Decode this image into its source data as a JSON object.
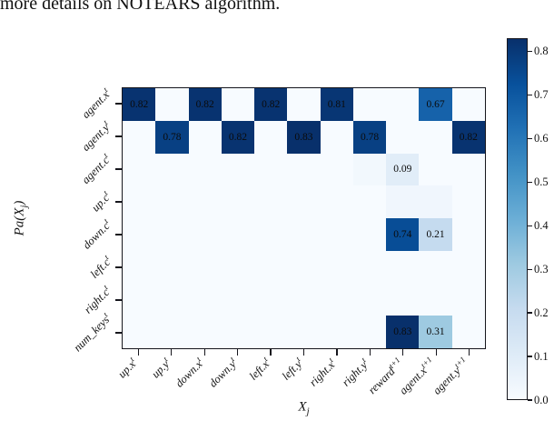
{
  "caption": {
    "text": "more details on NOTEARS algorithm."
  },
  "chart_data": {
    "type": "heatmap",
    "title": "",
    "xlabel": {
      "pre": "",
      "base": "X",
      "sub": "j",
      "post": ""
    },
    "ylabel": {
      "pre": "Pa(",
      "base": "X",
      "sub": "j",
      "post": ")"
    },
    "columns": [
      {
        "base": "up.x",
        "sup": "t"
      },
      {
        "base": "up.y",
        "sup": "t"
      },
      {
        "base": "down.x",
        "sup": "t"
      },
      {
        "base": "down.y",
        "sup": "t"
      },
      {
        "base": "left.x",
        "sup": "t"
      },
      {
        "base": "left.y",
        "sup": "t"
      },
      {
        "base": "right.x",
        "sup": "t"
      },
      {
        "base": "right.y",
        "sup": "t"
      },
      {
        "base": "reward",
        "sup": "t+1"
      },
      {
        "base": "agent.x",
        "sup": "t+1"
      },
      {
        "base": "agent.y",
        "sup": "t+1"
      }
    ],
    "rows": [
      {
        "base": "agent.x",
        "sup": "t"
      },
      {
        "base": "agent.y",
        "sup": "t"
      },
      {
        "base": "agent.c",
        "sup": "t"
      },
      {
        "base": "up.c",
        "sup": "t"
      },
      {
        "base": "down.c",
        "sup": "t"
      },
      {
        "base": "left.c",
        "sup": "t"
      },
      {
        "base": "right.c",
        "sup": "t"
      },
      {
        "base": "num_keys",
        "sup": "t"
      }
    ],
    "values": [
      [
        0.82,
        0,
        0.82,
        0,
        0.82,
        0,
        0.81,
        0,
        0,
        0.67,
        0
      ],
      [
        0,
        0.78,
        0,
        0.82,
        0,
        0.83,
        0,
        0.78,
        0,
        0,
        0.82
      ],
      [
        0,
        0,
        0,
        0,
        0,
        0,
        0,
        0.02,
        0.09,
        0,
        0
      ],
      [
        0,
        0,
        0,
        0,
        0,
        0,
        0,
        0,
        0.03,
        0.03,
        0
      ],
      [
        0,
        0,
        0,
        0,
        0,
        0,
        0,
        0,
        0.74,
        0.21,
        0
      ],
      [
        0,
        0,
        0,
        0,
        0,
        0,
        0,
        0,
        0,
        0,
        0
      ],
      [
        0,
        0,
        0,
        0,
        0,
        0,
        0,
        0,
        0,
        0,
        0
      ],
      [
        0,
        0,
        0,
        0,
        0,
        0,
        0,
        0,
        0.83,
        0.31,
        0
      ]
    ],
    "vmin": 0.0,
    "vmax": 0.83,
    "annotation_threshold": 0.05,
    "colormap": {
      "name": "Blues",
      "stops": [
        "#f7fbff",
        "#deebf7",
        "#c6dbef",
        "#9ecae1",
        "#6baed6",
        "#4292c6",
        "#2171b5",
        "#08519c",
        "#08306b"
      ]
    },
    "colorbar_ticks": [
      "0.8",
      "0.7",
      "0.6",
      "0.5",
      "0.4",
      "0.3",
      "0.2",
      "0.1",
      "0.0"
    ],
    "legend_position": "right",
    "grid": false
  }
}
